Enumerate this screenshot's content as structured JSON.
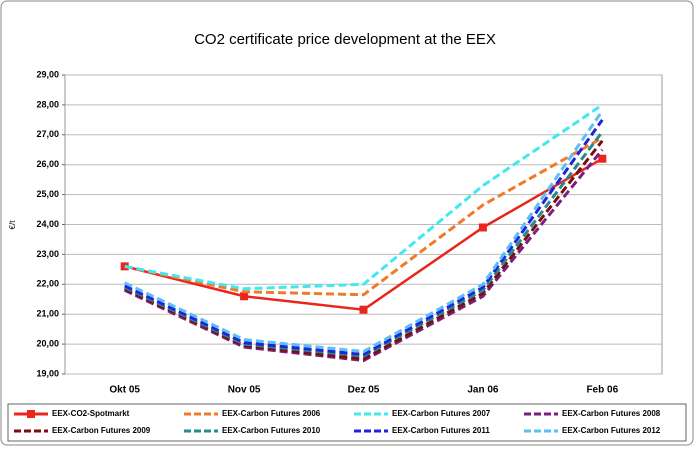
{
  "chart_data": {
    "type": "line",
    "title": "CO2 certificate price development at the EEX",
    "y_label": "€/t",
    "categories": [
      "Okt 05",
      "Nov 05",
      "Dez 05",
      "Jan 06",
      "Feb 06"
    ],
    "ylim": [
      19,
      29
    ],
    "yticks": [
      {
        "value": 19,
        "label": "19,00"
      },
      {
        "value": 20,
        "label": "20,00"
      },
      {
        "value": 21,
        "label": "21,00"
      },
      {
        "value": 22,
        "label": "22,00"
      },
      {
        "value": 23,
        "label": "23,00"
      },
      {
        "value": 24,
        "label": "24,00"
      },
      {
        "value": 25,
        "label": "25,00"
      },
      {
        "value": 26,
        "label": "26,00"
      },
      {
        "value": 27,
        "label": "27,00"
      },
      {
        "value": 28,
        "label": "28,00"
      },
      {
        "value": 29,
        "label": "29,00"
      }
    ],
    "grid": true,
    "series": [
      {
        "name": "EEX-CO2-Spotmarkt",
        "color": "#e8261c",
        "style": "solid",
        "marker": "square",
        "values": [
          22.6,
          21.6,
          21.15,
          23.9,
          26.2
        ]
      },
      {
        "name": "EEX-Carbon Futures 2006",
        "color": "#f07a2a",
        "style": "dashed",
        "values": [
          22.6,
          21.75,
          21.65,
          24.65,
          26.9
        ]
      },
      {
        "name": "EEX-Carbon Futures 2007",
        "color": "#40e8f0",
        "style": "dashed",
        "values": [
          22.6,
          21.85,
          22.0,
          25.3,
          28.0
        ]
      },
      {
        "name": "EEX-Carbon Futures 2008",
        "color": "#7a1f82",
        "style": "dashed",
        "values": [
          21.8,
          19.9,
          19.45,
          21.6,
          26.5
        ]
      },
      {
        "name": "EEX-Carbon Futures 2009",
        "color": "#7a0f10",
        "style": "dashed",
        "values": [
          21.85,
          19.95,
          19.5,
          21.7,
          26.8
        ]
      },
      {
        "name": "EEX-Carbon Futures 2010",
        "color": "#2a8a88",
        "style": "dashed",
        "values": [
          21.9,
          20.0,
          19.6,
          21.8,
          27.1
        ]
      },
      {
        "name": "EEX-Carbon Futures 2011",
        "color": "#1f22e0",
        "style": "dashed",
        "values": [
          21.95,
          20.05,
          19.65,
          21.9,
          27.5
        ]
      },
      {
        "name": "EEX-Carbon Futures 2012",
        "color": "#5ac0f5",
        "style": "dashed",
        "values": [
          22.05,
          20.15,
          19.75,
          22.0,
          27.8
        ]
      }
    ]
  }
}
